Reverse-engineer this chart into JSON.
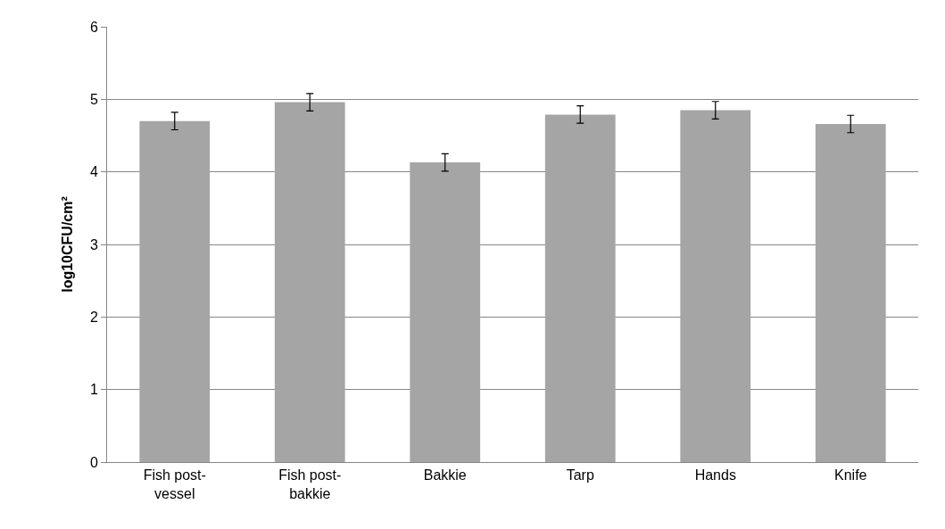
{
  "chart_data": {
    "type": "bar",
    "ylabel": "log10CFU/cm²",
    "categories": [
      "Fish post-vessel",
      "Fish post-bakkie",
      "Bakkie",
      "Tarp",
      "Hands",
      "Knife"
    ],
    "values": [
      4.7,
      4.96,
      4.13,
      4.79,
      4.85,
      4.66
    ],
    "errors": [
      0.12,
      0.12,
      0.12,
      0.12,
      0.12,
      0.12
    ],
    "color": "#a5a5a5",
    "ylim": [
      0,
      6
    ],
    "yticks": [
      0,
      1,
      2,
      3,
      4,
      5,
      6
    ],
    "grid": "y",
    "legend": false
  }
}
